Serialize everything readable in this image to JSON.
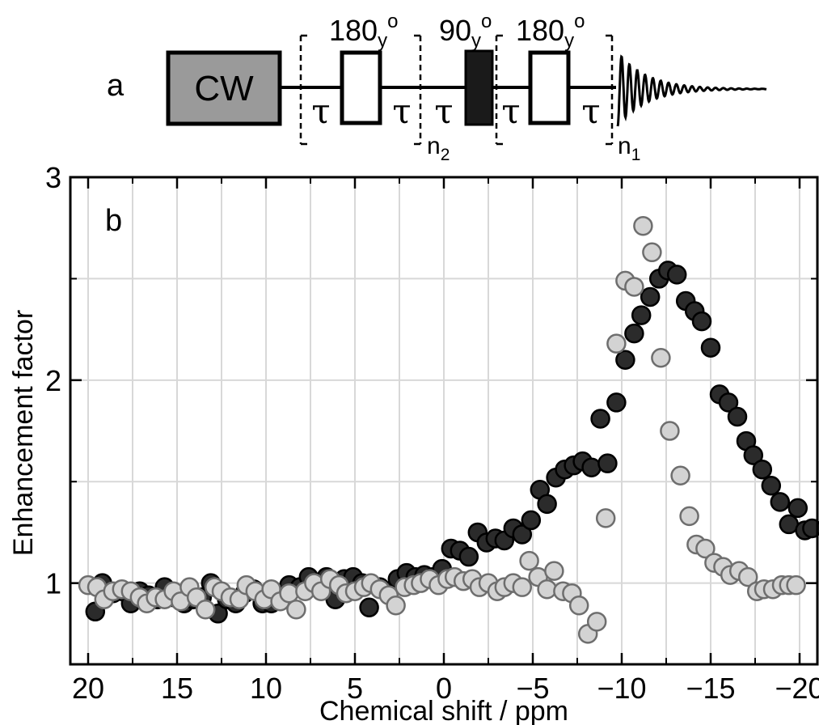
{
  "panel_a": {
    "label": "a",
    "cw_label": "CW",
    "tau": "τ",
    "pulse180_1": {
      "main": "180",
      "sub": "y",
      "sup": "o"
    },
    "pulse90": {
      "main": "90",
      "sub": "y",
      "sup": "o"
    },
    "pulse180_2": {
      "main": "180",
      "sub": "y",
      "sup": "o"
    },
    "n2": {
      "main": "n",
      "sub": "2"
    },
    "n1": {
      "main": "n",
      "sub": "1"
    }
  },
  "chart_data": {
    "type": "scatter",
    "panel_label": "b",
    "title": "",
    "xlabel": "Chemical shift / ppm",
    "ylabel": "Enhancement factor",
    "xlim": [
      21,
      -21
    ],
    "ylim": [
      0.6,
      3.0
    ],
    "x_reversed": true,
    "x_ticks": [
      20,
      15,
      10,
      5,
      0,
      -5,
      -10,
      -15,
      -20
    ],
    "x_tick_labels": [
      "20",
      "15",
      "10",
      "5",
      "0",
      "−5",
      "−10",
      "−15",
      "−20"
    ],
    "y_ticks": [
      1,
      2,
      3
    ],
    "y_tick_labels": [
      "1",
      "2",
      "3"
    ],
    "grid": true,
    "series": [
      {
        "color": "#2b2b2b",
        "stroke": "#000000",
        "points": [
          [
            19.6,
            0.86
          ],
          [
            19.2,
            1.0
          ],
          [
            18.6,
            0.95
          ],
          [
            18.1,
            0.96
          ],
          [
            17.6,
            0.9
          ],
          [
            17.1,
            0.96
          ],
          [
            16.6,
            0.94
          ],
          [
            16.1,
            0.92
          ],
          [
            15.7,
            0.98
          ],
          [
            15.2,
            0.93
          ],
          [
            14.6,
            0.9
          ],
          [
            14.1,
            0.92
          ],
          [
            13.6,
            0.93
          ],
          [
            13.1,
            1.0
          ],
          [
            12.7,
            0.85
          ],
          [
            12.2,
            0.92
          ],
          [
            11.7,
            0.9
          ],
          [
            11.2,
            0.95
          ],
          [
            10.7,
            0.97
          ],
          [
            10.2,
            0.9
          ],
          [
            9.7,
            0.9
          ],
          [
            9.2,
            0.95
          ],
          [
            8.7,
            0.99
          ],
          [
            8.1,
            0.98
          ],
          [
            7.6,
            1.03
          ],
          [
            7.1,
            1.0
          ],
          [
            6.6,
            1.03
          ],
          [
            6.1,
            0.92
          ],
          [
            5.6,
            1.02
          ],
          [
            5.1,
            1.03
          ],
          [
            4.6,
            1.0
          ],
          [
            4.2,
            0.88
          ],
          [
            3.6,
            0.98
          ],
          [
            3.1,
            0.96
          ],
          [
            2.6,
            1.02
          ],
          [
            2.1,
            1.05
          ],
          [
            1.6,
            1.03
          ],
          [
            1.1,
            1.04
          ],
          [
            0.6,
            1.03
          ],
          [
            0.1,
            1.07
          ],
          [
            -0.4,
            1.17
          ],
          [
            -0.9,
            1.16
          ],
          [
            -1.4,
            1.13
          ],
          [
            -1.9,
            1.25
          ],
          [
            -2.4,
            1.2
          ],
          [
            -2.9,
            1.22
          ],
          [
            -3.4,
            1.21
          ],
          [
            -3.9,
            1.27
          ],
          [
            -4.4,
            1.24
          ],
          [
            -4.9,
            1.31
          ],
          [
            -5.4,
            1.46
          ],
          [
            -5.8,
            1.39
          ],
          [
            -6.3,
            1.52
          ],
          [
            -6.8,
            1.56
          ],
          [
            -7.3,
            1.58
          ],
          [
            -7.8,
            1.6
          ],
          [
            -8.3,
            1.57
          ],
          [
            -8.8,
            1.81
          ],
          [
            -9.2,
            1.59
          ],
          [
            -9.7,
            1.89
          ],
          [
            -10.2,
            2.1
          ],
          [
            -10.7,
            2.23
          ],
          [
            -11.1,
            2.32
          ],
          [
            -11.6,
            2.41
          ],
          [
            -12.1,
            2.5
          ],
          [
            -12.6,
            2.54
          ],
          [
            -13.1,
            2.52
          ],
          [
            -13.6,
            2.39
          ],
          [
            -14.1,
            2.34
          ],
          [
            -14.5,
            2.29
          ],
          [
            -15.0,
            2.16
          ],
          [
            -15.5,
            1.93
          ],
          [
            -16.0,
            1.89
          ],
          [
            -16.5,
            1.82
          ],
          [
            -17.0,
            1.7
          ],
          [
            -17.4,
            1.63
          ],
          [
            -17.9,
            1.56
          ],
          [
            -18.4,
            1.48
          ],
          [
            -18.9,
            1.4
          ],
          [
            -19.4,
            1.29
          ],
          [
            -19.9,
            1.37
          ],
          [
            -20.3,
            1.26
          ],
          [
            -20.7,
            1.27
          ]
        ]
      },
      {
        "color": "#d3d3d3",
        "stroke": "#6e6e6e",
        "points": [
          [
            20.0,
            0.99
          ],
          [
            19.5,
            0.98
          ],
          [
            19.1,
            0.92
          ],
          [
            18.6,
            0.96
          ],
          [
            18.1,
            0.97
          ],
          [
            17.6,
            0.96
          ],
          [
            17.1,
            0.93
          ],
          [
            16.7,
            0.9
          ],
          [
            16.2,
            0.93
          ],
          [
            15.7,
            0.92
          ],
          [
            15.2,
            0.96
          ],
          [
            14.8,
            0.91
          ],
          [
            14.3,
            0.98
          ],
          [
            13.9,
            0.93
          ],
          [
            13.4,
            0.87
          ],
          [
            12.9,
            0.98
          ],
          [
            12.5,
            0.96
          ],
          [
            12.0,
            0.93
          ],
          [
            11.5,
            0.92
          ],
          [
            11.1,
            0.99
          ],
          [
            10.6,
            0.96
          ],
          [
            10.1,
            0.92
          ],
          [
            9.7,
            0.97
          ],
          [
            9.2,
            0.91
          ],
          [
            8.7,
            0.95
          ],
          [
            8.3,
            0.87
          ],
          [
            7.8,
            0.96
          ],
          [
            7.3,
            1.0
          ],
          [
            6.9,
            0.96
          ],
          [
            6.4,
            1.02
          ],
          [
            5.9,
            0.99
          ],
          [
            5.5,
            0.95
          ],
          [
            5.0,
            0.96
          ],
          [
            4.5,
            0.98
          ],
          [
            4.1,
            1.0
          ],
          [
            3.6,
            0.97
          ],
          [
            3.1,
            0.94
          ],
          [
            2.7,
            0.89
          ],
          [
            2.2,
            0.98
          ],
          [
            1.7,
            0.99
          ],
          [
            1.3,
            1.0
          ],
          [
            0.8,
            1.02
          ],
          [
            0.3,
            0.99
          ],
          [
            -0.2,
            1.02
          ],
          [
            -0.6,
            1.03
          ],
          [
            -1.1,
            1.01
          ],
          [
            -1.6,
            1.02
          ],
          [
            -2.0,
            0.98
          ],
          [
            -2.5,
            1.0
          ],
          [
            -3.0,
            0.96
          ],
          [
            -3.4,
            0.98
          ],
          [
            -3.9,
            1.0
          ],
          [
            -4.4,
            0.98
          ],
          [
            -4.8,
            1.11
          ],
          [
            -5.3,
            1.03
          ],
          [
            -5.8,
            0.97
          ],
          [
            -6.2,
            1.06
          ],
          [
            -6.7,
            0.96
          ],
          [
            -7.2,
            0.95
          ],
          [
            -7.6,
            0.89
          ],
          [
            -8.1,
            0.75
          ],
          [
            -8.6,
            0.81
          ],
          [
            -9.1,
            1.32
          ],
          [
            -9.7,
            2.18
          ],
          [
            -10.2,
            2.49
          ],
          [
            -10.7,
            2.46
          ],
          [
            -11.2,
            2.76
          ],
          [
            -11.7,
            2.63
          ],
          [
            -12.2,
            2.11
          ],
          [
            -12.7,
            1.75
          ],
          [
            -13.3,
            1.53
          ],
          [
            -13.8,
            1.33
          ],
          [
            -14.2,
            1.19
          ],
          [
            -14.7,
            1.17
          ],
          [
            -15.2,
            1.1
          ],
          [
            -15.7,
            1.08
          ],
          [
            -16.1,
            1.04
          ],
          [
            -16.6,
            1.06
          ],
          [
            -17.1,
            1.03
          ],
          [
            -17.6,
            0.96
          ],
          [
            -18.0,
            0.97
          ],
          [
            -18.5,
            0.97
          ],
          [
            -19.0,
            0.99
          ],
          [
            -19.4,
            0.99
          ],
          [
            -19.8,
            0.99
          ]
        ]
      }
    ]
  }
}
